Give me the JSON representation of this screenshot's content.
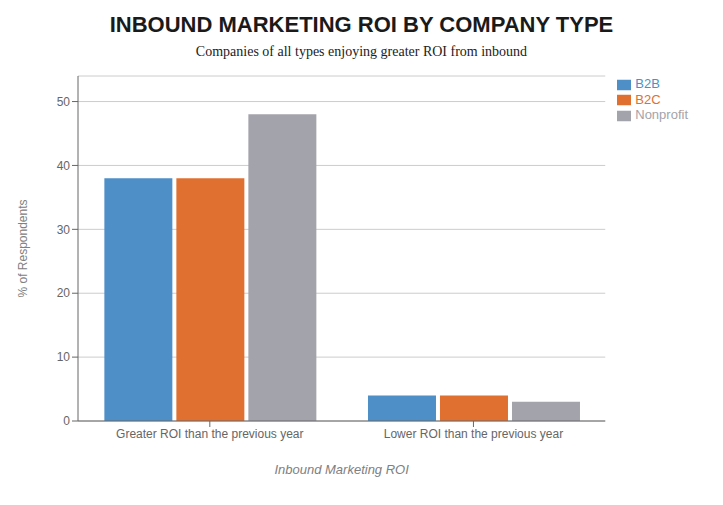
{
  "chart_data": {
    "type": "bar",
    "title": "INBOUND MARKETING ROI BY COMPANY TYPE",
    "subtitle": "Companies of all types enjoying greater ROI from inbound",
    "xlabel": "Inbound Marketing ROI",
    "ylabel": "% of Respondents",
    "categories": [
      "Greater ROI than the previous year",
      "Lower ROI than the previous year"
    ],
    "series": [
      {
        "name": "B2B",
        "color": "#4e8fc7",
        "values": [
          38,
          4
        ]
      },
      {
        "name": "B2C",
        "color": "#e07030",
        "values": [
          38,
          4
        ]
      },
      {
        "name": "Nonprofit",
        "color": "#a3a3ab",
        "values": [
          48,
          3
        ]
      }
    ],
    "ylim": [
      0,
      54
    ],
    "yticks": [
      0,
      10,
      20,
      30,
      40,
      50
    ],
    "grid": true,
    "legend": "upper right"
  }
}
